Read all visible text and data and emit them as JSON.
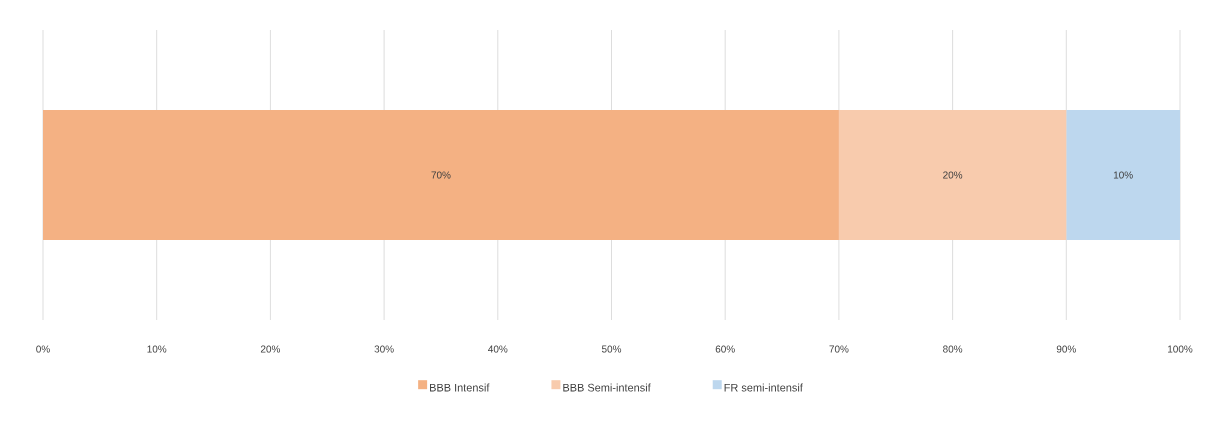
{
  "chart_data": {
    "type": "bar",
    "orientation": "horizontal",
    "stacked": true,
    "categories": [
      null
    ],
    "series": [
      {
        "name": "BBB Intensif",
        "color": "#f4b183",
        "values": [
          70
        ],
        "value_labels": [
          "70%"
        ]
      },
      {
        "name": "BBB Semi-intensif",
        "color": "#f8cbad",
        "values": [
          20
        ],
        "value_labels": [
          "20%"
        ]
      },
      {
        "name": "FR semi-intensif",
        "color": "#bdd7ee",
        "values": [
          10
        ],
        "value_labels": [
          "10%"
        ]
      }
    ],
    "xlim": [
      0,
      100
    ],
    "xticks": [
      {
        "value": 0,
        "label": "0%"
      },
      {
        "value": 10,
        "label": "10%"
      },
      {
        "value": 20,
        "label": "20%"
      },
      {
        "value": 30,
        "label": "30%"
      },
      {
        "value": 40,
        "label": "40%"
      },
      {
        "value": 50,
        "label": "50%"
      },
      {
        "value": 60,
        "label": "60%"
      },
      {
        "value": 70,
        "label": "70%"
      },
      {
        "value": 80,
        "label": "80%"
      },
      {
        "value": 90,
        "label": "90%"
      },
      {
        "value": 100,
        "label": "100%"
      }
    ],
    "grid": "x",
    "legend": "bottom"
  }
}
